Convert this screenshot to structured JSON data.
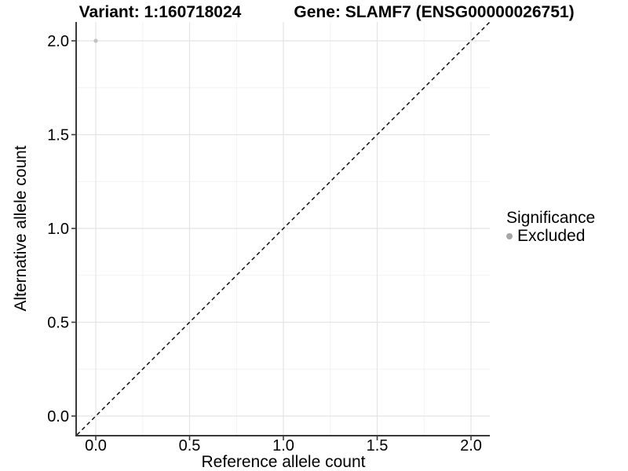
{
  "titles": {
    "variant": "Variant: 1:160718024",
    "gene": "Gene: SLAMF7 (ENSG00000026751)"
  },
  "axes": {
    "x": {
      "label": "Reference allele count",
      "ticks": [
        "0.0",
        "0.5",
        "1.0",
        "1.5",
        "2.0"
      ]
    },
    "y": {
      "label": "Alternative allele count",
      "ticks": [
        "2.0",
        "1.5",
        "1.0",
        "0.5",
        "0.0"
      ]
    }
  },
  "legend": {
    "title": "Significance",
    "items": [
      {
        "label": "Excluded",
        "color": "#a6a6a6"
      }
    ]
  },
  "colors": {
    "point": "#c2c2c2",
    "legend_key": "#a6a6a6",
    "grid_major": "#e4e4e4",
    "grid_minor": "#f2f2f2",
    "axis_line": "#3a3a3a",
    "tick_label": "#000000",
    "reference_line": "#000000"
  },
  "chart_data": {
    "type": "scatter",
    "title": "Variant: 1:160718024 | Gene: SLAMF7 (ENSG00000026751)",
    "xlabel": "Reference allele count",
    "ylabel": "Alternative allele count",
    "xlim": [
      -0.1,
      2.1
    ],
    "ylim": [
      -0.1,
      2.1
    ],
    "x_major_ticks": [
      0,
      0.5,
      1,
      1.5,
      2
    ],
    "y_major_ticks": [
      0,
      0.5,
      1,
      1.5,
      2
    ],
    "grid": "major+minor",
    "legend_position": "right",
    "series": [
      {
        "name": "Excluded",
        "color": "#c2c2c2",
        "point_radius": 2.6,
        "points": [
          {
            "x": 0,
            "y": 2
          }
        ]
      }
    ],
    "reference_line": {
      "type": "identity",
      "slope": 1,
      "intercept": 0,
      "style": "dashed",
      "from": [
        -0.1,
        -0.1
      ],
      "to": [
        2.1,
        2.1
      ]
    }
  }
}
